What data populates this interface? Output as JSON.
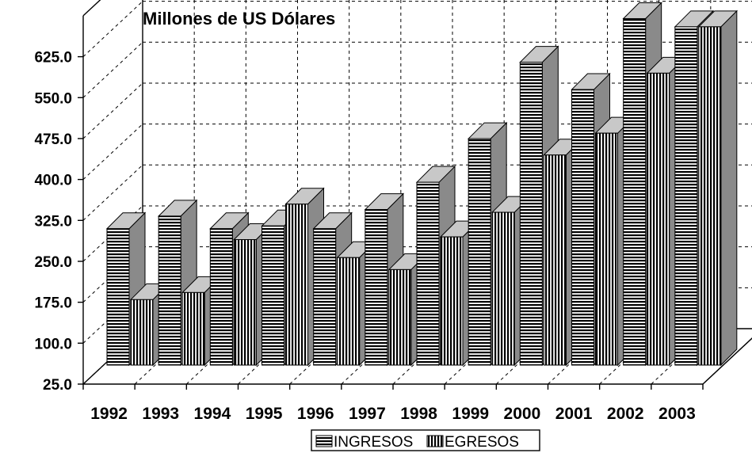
{
  "chart_data": {
    "type": "bar",
    "title": "Millones de US Dólares",
    "xlabel": "",
    "ylabel": "",
    "categories": [
      "1992",
      "1993",
      "1994",
      "1995",
      "1996",
      "1997",
      "1998",
      "1999",
      "2000",
      "2001",
      "2002",
      "2003"
    ],
    "y_ticks": [
      "25.0",
      "100.0",
      "175.0",
      "250.0",
      "325.0",
      "400.0",
      "475.0",
      "550.0",
      "625.0"
    ],
    "ylim": [
      25,
      700
    ],
    "grid": true,
    "legend_position": "bottom",
    "series": [
      {
        "name": "INGRESOS",
        "pattern": "horizontal-stripes",
        "values": [
          275,
          298,
          275,
          280,
          275,
          310,
          360,
          440,
          580,
          530,
          660,
          645
        ]
      },
      {
        "name": "EGRESOS",
        "pattern": "vertical-stripes",
        "values": [
          145,
          158,
          255,
          320,
          222,
          200,
          260,
          305,
          410,
          450,
          560,
          645
        ]
      }
    ]
  }
}
